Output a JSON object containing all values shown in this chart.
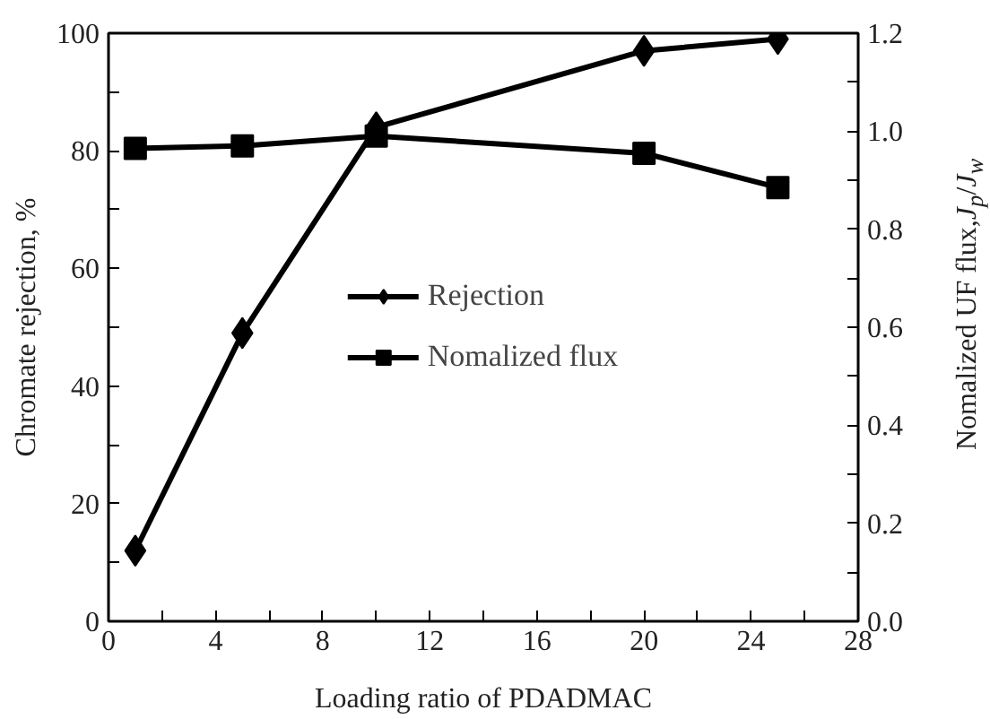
{
  "chart_data": {
    "type": "line",
    "xlabel": "Loading ratio of PDADMAC",
    "ylabel": "Chromate rejection, %",
    "y2label": "Nomalized UF flux,J$_{p}$/J$_{w}$",
    "x": [
      1,
      5,
      10,
      20,
      25
    ],
    "series": [
      {
        "name": "Rejection",
        "color": "#000000",
        "marker": "diamond",
        "values": [
          12,
          49,
          84,
          97,
          99
        ]
      },
      {
        "name": "Nomalized flux",
        "color": "#000000",
        "marker": "square",
        "axis": "y2",
        "values": [
          0.965,
          0.97,
          0.99,
          0.955,
          0.885
        ]
      }
    ],
    "xlim": [
      0,
      28
    ],
    "xticks": [
      0,
      4,
      8,
      12,
      16,
      20,
      24,
      28
    ],
    "ylim": [
      0,
      100
    ],
    "yticks": [
      0,
      20,
      40,
      60,
      80,
      100
    ],
    "y2lim": [
      0,
      1.2
    ],
    "y2ticks": [
      {
        "value": 0,
        "label": "0.0"
      },
      0.2,
      0.4,
      0.6,
      0.8,
      {
        "value": 1,
        "label": "1.0"
      },
      1.2
    ],
    "grid": false,
    "legend": "center",
    "line_style": "solid"
  }
}
